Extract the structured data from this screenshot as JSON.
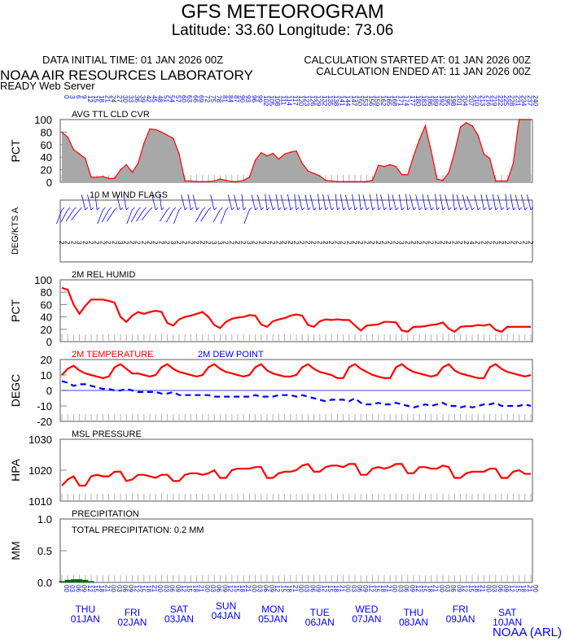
{
  "header": {
    "title": "GFS METEOROGRAM",
    "location": "Latitude: 33.60 Longitude:  73.06",
    "data_initial": "DATA INITIAL TIME: 01 JAN 2026 00Z",
    "calc_started": "CALCULATION STARTED AT: 01 JAN 2026 00Z",
    "calc_ended": "CALCULATION ENDED AT: 11 JAN 2026 00Z",
    "org": "NOAA AIR RESOURCES LABORATORY",
    "server": "READY Web Server",
    "footer": "NOAA (ARL)"
  },
  "colors": {
    "line": "#ff0000",
    "dew": "#0000ff",
    "fill": "#a8a8a8",
    "axis": "#808080",
    "label": "#0000ff",
    "precip": "#006400"
  },
  "x_axis": {
    "forecast_hours": [
      0,
      3,
      6,
      9,
      12,
      15,
      18,
      21,
      24,
      27,
      30,
      33,
      36,
      39,
      42,
      45,
      48,
      51,
      54,
      57,
      60,
      63,
      66,
      69,
      72,
      75,
      78,
      81,
      84,
      87,
      90,
      93,
      96,
      99,
      102,
      105,
      108,
      111,
      114,
      117,
      120,
      123,
      126,
      129,
      132,
      135,
      138,
      141,
      144,
      147,
      150,
      153,
      156,
      159,
      162,
      165,
      168,
      171,
      174,
      177,
      180,
      183,
      186,
      189,
      192,
      195,
      198,
      201,
      204,
      207,
      210,
      213,
      216,
      219,
      222,
      225,
      228,
      231,
      234,
      237,
      240
    ],
    "utc_hours": [
      "00",
      "03",
      "06",
      "09",
      "12",
      "15",
      "18",
      "21"
    ],
    "days": [
      {
        "dow": "THU",
        "date": "01JAN"
      },
      {
        "dow": "FRI",
        "date": "02JAN"
      },
      {
        "dow": "SAT",
        "date": "03JAN"
      },
      {
        "dow": "SUN",
        "date": "04JAN"
      },
      {
        "dow": "MON",
        "date": "05JAN"
      },
      {
        "dow": "TUE",
        "date": "06JAN"
      },
      {
        "dow": "WED",
        "date": "07JAN"
      },
      {
        "dow": "THU",
        "date": "08JAN"
      },
      {
        "dow": "FRI",
        "date": "09JAN"
      },
      {
        "dow": "SAT",
        "date": "10JAN"
      }
    ]
  },
  "chart_data": [
    {
      "type": "area",
      "title": "AVG TTL CLD CVR",
      "ylabel": "PCT",
      "ylim": [
        0,
        100
      ],
      "yticks": [
        "0",
        "20",
        "40",
        "60",
        "80",
        "100"
      ],
      "values": [
        80,
        72,
        52,
        45,
        38,
        8,
        8,
        9,
        6,
        6,
        20,
        28,
        16,
        30,
        62,
        85,
        84,
        80,
        75,
        70,
        45,
        2,
        2,
        1,
        1,
        1,
        2,
        5,
        3,
        1,
        1,
        3,
        8,
        35,
        47,
        42,
        46,
        37,
        45,
        48,
        50,
        30,
        18,
        14,
        10,
        3,
        2,
        1,
        1,
        1,
        1,
        1,
        1,
        3,
        27,
        25,
        28,
        25,
        12,
        12,
        42,
        68,
        90,
        50,
        5,
        3,
        15,
        48,
        88,
        95,
        90,
        75,
        45,
        38,
        2,
        2,
        2,
        30,
        100,
        100,
        100
      ]
    },
    {
      "type": "barbs",
      "title": "10 M  WIND FLAGS",
      "ylabel": "DEG/KTS  A",
      "speeds": [
        2,
        2,
        2,
        3,
        2,
        2,
        2,
        2,
        2,
        2,
        3,
        2,
        2,
        2,
        2,
        2,
        2,
        2,
        2,
        3,
        2,
        2,
        2,
        2,
        2,
        2,
        3,
        3,
        2,
        2,
        2,
        2,
        3,
        2,
        2,
        2,
        2,
        2,
        2,
        2,
        2,
        2,
        2,
        2,
        2,
        2,
        2,
        2,
        2,
        2,
        2,
        2,
        2,
        2,
        2,
        2,
        2,
        2,
        3,
        2,
        2,
        2,
        2,
        2,
        2,
        2,
        2,
        2,
        2,
        2,
        4,
        2,
        2,
        2,
        2,
        2,
        2,
        2,
        2,
        2,
        2
      ],
      "directions": [
        330,
        320,
        315,
        310,
        200,
        200,
        190,
        330,
        320,
        315,
        200,
        195,
        330,
        320,
        315,
        310,
        200,
        190,
        315,
        320,
        330,
        200,
        195,
        200,
        320,
        315,
        200,
        320,
        330,
        200,
        200,
        190,
        330,
        200,
        200,
        190,
        200,
        195,
        200,
        195,
        190,
        200,
        195,
        200,
        190,
        195,
        200,
        190,
        195,
        200,
        195,
        190,
        200,
        195,
        190,
        200,
        190,
        200,
        195,
        190,
        200,
        200,
        195,
        200,
        190,
        195,
        200,
        190,
        200,
        200,
        210,
        200,
        195,
        200,
        195,
        200,
        190,
        195,
        200,
        200,
        200
      ]
    },
    {
      "type": "line",
      "title": "2M REL HUMID",
      "ylabel": "PCT",
      "ylim": [
        0,
        100
      ],
      "yticks": [
        "0",
        "20",
        "40",
        "60",
        "80",
        "100"
      ],
      "values": [
        87,
        84,
        60,
        45,
        58,
        68,
        68,
        68,
        66,
        63,
        40,
        32,
        42,
        48,
        45,
        48,
        50,
        48,
        30,
        26,
        36,
        40,
        42,
        45,
        48,
        40,
        27,
        22,
        32,
        37,
        39,
        40,
        43,
        42,
        28,
        24,
        33,
        36,
        38,
        42,
        44,
        42,
        27,
        24,
        33,
        36,
        35,
        36,
        35,
        35,
        26,
        18,
        26,
        27,
        28,
        32,
        32,
        31,
        18,
        16,
        24,
        24,
        25,
        27,
        28,
        31,
        21,
        16,
        24,
        25,
        25,
        27,
        26,
        28,
        19,
        16,
        24,
        24,
        24,
        24,
        24
      ]
    },
    {
      "type": "line",
      "title": "2M TEMPERATURE",
      "title2": "2M  DEW POINT",
      "ylabel": "DEGC",
      "ylim": [
        -20,
        20
      ],
      "yticks": [
        "-20",
        "-10",
        "0",
        "10",
        "20"
      ],
      "series": [
        {
          "name": "2M TEMPERATURE",
          "values": [
            10,
            14,
            16,
            13,
            11,
            10,
            9,
            8,
            9,
            15,
            17,
            14,
            11,
            11,
            10,
            9,
            10,
            15,
            17,
            14,
            12,
            11,
            10,
            9,
            10,
            15,
            17,
            14,
            12,
            11,
            10,
            9,
            10,
            15,
            17,
            13,
            11,
            10,
            9,
            9,
            10,
            15,
            17,
            14,
            12,
            11,
            10,
            8,
            8,
            15,
            17,
            14,
            12,
            10,
            9,
            8,
            8,
            15,
            17,
            14,
            12,
            11,
            10,
            9,
            10,
            15,
            17,
            13,
            11,
            10,
            9,
            8,
            8,
            15,
            17,
            14,
            12,
            11,
            10,
            9,
            10
          ]
        },
        {
          "name": "2M  DEW POINT",
          "values": [
            6,
            5,
            3,
            4,
            4,
            3,
            2,
            1,
            1,
            0,
            0,
            1,
            0,
            -1,
            -1,
            -1,
            -1,
            -2,
            -2,
            -1,
            -3,
            -3,
            -3,
            -3,
            -3,
            -3,
            -4,
            -4,
            -4,
            -4,
            -4,
            -4,
            -4,
            -3,
            -4,
            -4,
            -4,
            -3,
            -3,
            -3,
            -4,
            -3,
            -4,
            -5,
            -6,
            -7,
            -6,
            -6,
            -6,
            -7,
            -5,
            -8,
            -9,
            -9,
            -8,
            -9,
            -9,
            -8,
            -9,
            -10,
            -11,
            -10,
            -9,
            -10,
            -9,
            -8,
            -10,
            -10,
            -11,
            -10,
            -11,
            -10,
            -9,
            -9,
            -8,
            -10,
            -10,
            -10,
            -10,
            -9,
            -10
          ]
        }
      ]
    },
    {
      "type": "line",
      "title": "MSL PRESSURE",
      "ylabel": "HPA",
      "ylim": [
        1010,
        1030
      ],
      "yticks": [
        "1010",
        "1020",
        "1030"
      ],
      "values": [
        1015,
        1017,
        1018,
        1015,
        1015,
        1018,
        1018.5,
        1018,
        1018,
        1019.5,
        1019.5,
        1016.5,
        1017,
        1018.5,
        1018.5,
        1018,
        1017.5,
        1018.5,
        1018.5,
        1016.5,
        1016.5,
        1018.5,
        1019,
        1019,
        1018.5,
        1019,
        1020,
        1017.5,
        1017.5,
        1020,
        1020.5,
        1020.5,
        1020.5,
        1021,
        1021,
        1017.5,
        1017.5,
        1019,
        1019.5,
        1019.5,
        1020,
        1021.5,
        1022,
        1019.5,
        1019.5,
        1021,
        1021.5,
        1021.5,
        1021,
        1022,
        1022,
        1018.5,
        1018.5,
        1020.5,
        1021,
        1020.5,
        1021,
        1022,
        1022,
        1019,
        1019,
        1021,
        1021,
        1020.5,
        1020.5,
        1021.5,
        1021,
        1017.5,
        1017.5,
        1019,
        1019.5,
        1019.5,
        1019.5,
        1020.5,
        1020.5,
        1017.5,
        1017.5,
        1019.5,
        1020,
        1018.8,
        1018.8
      ]
    },
    {
      "type": "bar",
      "title": "PRECIPITATION",
      "subtitle": "TOTAL PRECIPITATION:  0.2 MM",
      "ylabel": "MM",
      "ylim": [
        0,
        1
      ],
      "yticks": [
        "0.0",
        "0.5",
        "1.0"
      ],
      "values": [
        0.02,
        0.04,
        0.05,
        0.05,
        0.04,
        0.02,
        0,
        0,
        0,
        0,
        0,
        0,
        0,
        0,
        0,
        0,
        0,
        0,
        0,
        0,
        0,
        0,
        0,
        0,
        0,
        0,
        0,
        0,
        0,
        0,
        0,
        0,
        0,
        0,
        0,
        0,
        0,
        0,
        0,
        0,
        0,
        0,
        0,
        0,
        0,
        0,
        0,
        0,
        0,
        0,
        0,
        0,
        0,
        0,
        0,
        0,
        0,
        0,
        0,
        0,
        0,
        0,
        0,
        0,
        0,
        0,
        0,
        0,
        0,
        0,
        0,
        0,
        0,
        0,
        0,
        0,
        0,
        0,
        0,
        0,
        0
      ]
    }
  ]
}
